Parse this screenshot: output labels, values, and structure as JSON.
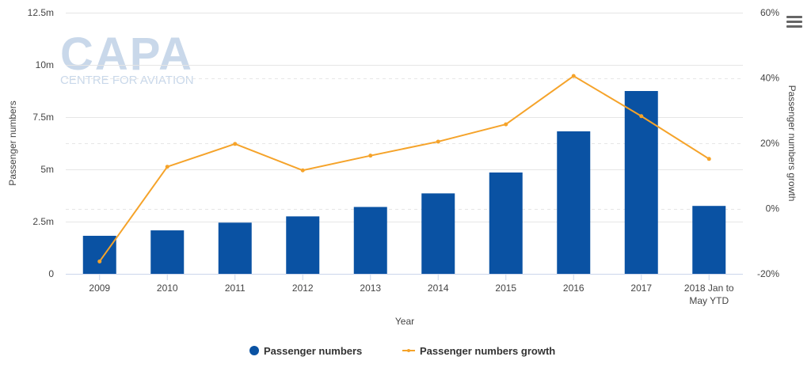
{
  "watermark": {
    "brand": "CAPA",
    "tagline": "CENTRE FOR AVIATION"
  },
  "menu_icon": "hamburger-menu-icon",
  "colors": {
    "bars": "#0a52a3",
    "line": "#f5a32a",
    "grid": "#e6e6e6"
  },
  "chart_data": {
    "type": "bar+line",
    "categories": [
      "2009",
      "2010",
      "2011",
      "2012",
      "2013",
      "2014",
      "2015",
      "2016",
      "2017",
      "2018 Jan to May YTD"
    ],
    "xlabel": "Year",
    "ylabel": "Passenger numbers",
    "y2label": "Passenger numbers growth",
    "ylim": [
      0,
      12500000
    ],
    "yticks": [
      "0",
      "2.5m",
      "5m",
      "7.5m",
      "10m",
      "12.5m"
    ],
    "y2lim": [
      -20,
      60
    ],
    "y2ticks": [
      "-20%",
      "0%",
      "20%",
      "40%",
      "60%"
    ],
    "series": [
      {
        "name": "Passenger numbers",
        "type": "bar",
        "axis": "left",
        "values": [
          1820000,
          2080000,
          2450000,
          2750000,
          3200000,
          3850000,
          4850000,
          6820000,
          8750000,
          3250000
        ]
      },
      {
        "name": "Passenger numbers growth",
        "type": "line",
        "axis": "right",
        "values": [
          -16.2,
          12.8,
          19.8,
          11.7,
          16.2,
          20.5,
          25.8,
          40.6,
          28.3,
          15.2
        ]
      }
    ],
    "legend": "bottom-center",
    "grid": true
  }
}
